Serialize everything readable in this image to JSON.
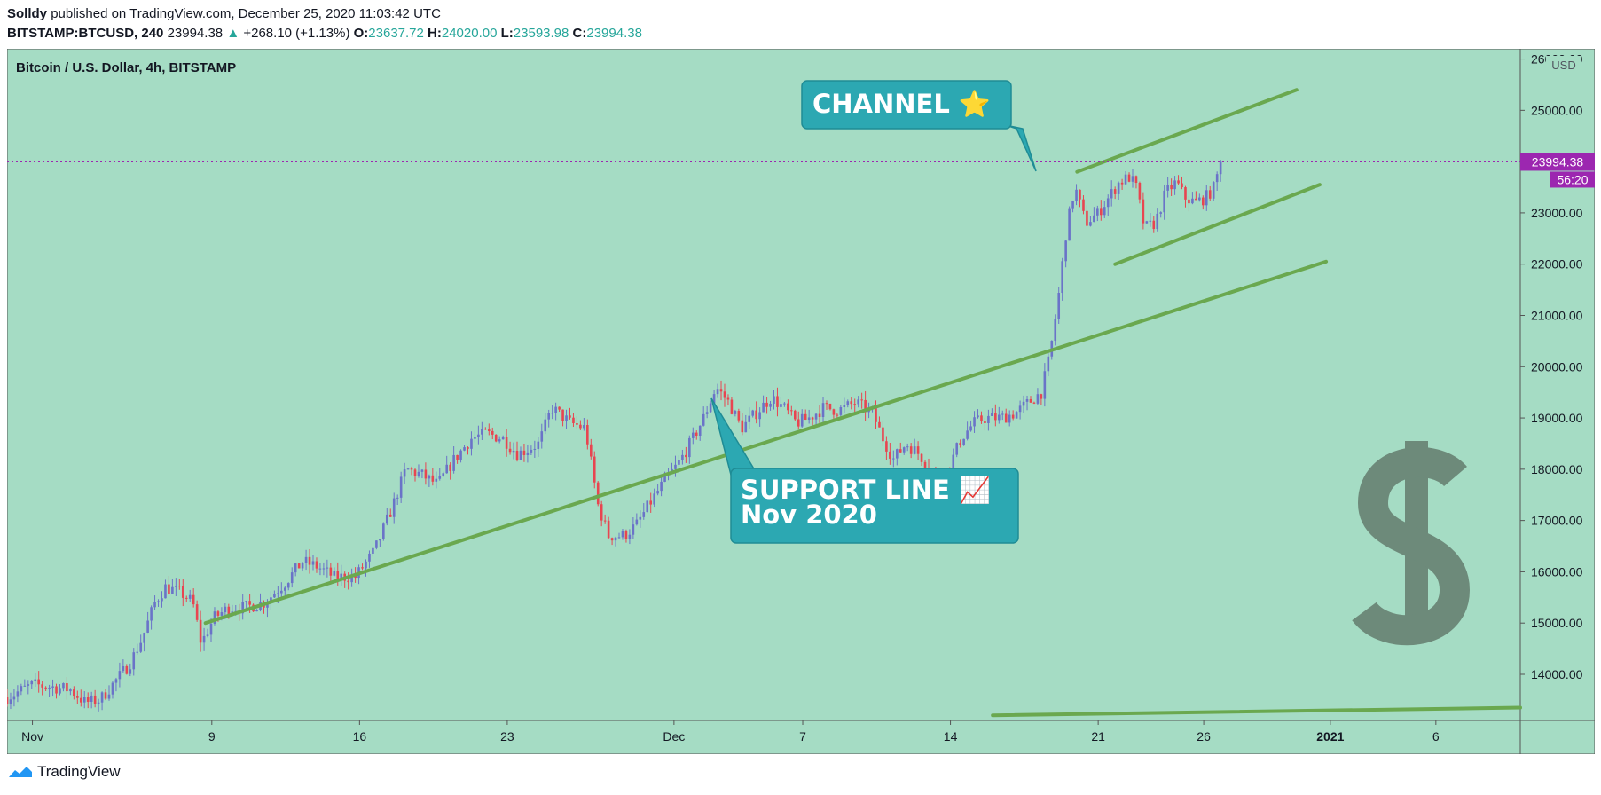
{
  "header": {
    "author": "Solldy",
    "published_text": "published on TradingView.com, December 25, 2020 11:03:42 UTC"
  },
  "ohlc": {
    "symbol": "BITSTAMP:BTCUSD, 240",
    "last": "23994.38",
    "change_arrow": "▲",
    "change": "+268.10 (+1.13%)",
    "o_label": "O:",
    "o": "23637.72",
    "h_label": "H:",
    "h": "24020.00",
    "l_label": "L:",
    "l": "23593.98",
    "c_label": "C:",
    "c": "23994.38"
  },
  "chart_title": "Bitcoin / U.S. Dollar, 4h, BITSTAMP",
  "currency_label": "USD",
  "price_tag": "23994.38",
  "countdown_tag": "56:20",
  "footer": {
    "brand": "TradingView"
  },
  "colors": {
    "background": "#a5dcc4",
    "candle_up": "#6a73c8",
    "candle_down": "#e84550",
    "trendline": "#6aa84f",
    "callout_fill": "#2ca8b2",
    "price_tag": "#9c27b0",
    "dollar_sign": "#6d8a7a"
  },
  "annotations": [
    {
      "text": "CHANNEL ⭐"
    },
    {
      "text_line1": "SUPPORT LINE 📈",
      "text_line2": "Nov 2020"
    }
  ],
  "chart_data": {
    "type": "candlestick",
    "title": "Bitcoin / U.S. Dollar, 4h, BITSTAMP",
    "ylabel": "USD",
    "ylim": [
      13100,
      26200
    ],
    "y_ticks": [
      "14000.00",
      "15000.00",
      "16000.00",
      "17000.00",
      "18000.00",
      "19000.00",
      "20000.00",
      "21000.00",
      "22000.00",
      "23000.00",
      "24000.00",
      "25000.00",
      "26000.00"
    ],
    "x_ticks": [
      "Nov",
      "9",
      "16",
      "23",
      "Dec",
      "7",
      "14",
      "21",
      "26",
      "2021",
      "6"
    ],
    "x_tick_days": [
      0,
      8.5,
      15.5,
      22.5,
      30.4,
      36.5,
      43.5,
      50.5,
      55.5,
      61.5,
      66.5
    ],
    "xlim_days": [
      -1.2,
      70.5
    ],
    "close_path": [
      [
        -1.2,
        13550
      ],
      [
        0,
        13800
      ],
      [
        1,
        13750
      ],
      [
        1.8,
        13700
      ],
      [
        2.5,
        13450
      ],
      [
        3.2,
        13500
      ],
      [
        4,
        13900
      ],
      [
        4.6,
        14200
      ],
      [
        5.2,
        14700
      ],
      [
        5.8,
        15400
      ],
      [
        6.3,
        15700
      ],
      [
        7,
        15600
      ],
      [
        7.6,
        15400
      ],
      [
        8,
        14600
      ],
      [
        8.6,
        15100
      ],
      [
        9.3,
        15300
      ],
      [
        10,
        15300
      ],
      [
        11,
        15400
      ],
      [
        12,
        15800
      ],
      [
        12.8,
        16200
      ],
      [
        13.5,
        16100
      ],
      [
        14.3,
        15900
      ],
      [
        15.3,
        15900
      ],
      [
        16.2,
        16400
      ],
      [
        17,
        17200
      ],
      [
        17.7,
        18000
      ],
      [
        18.4,
        17900
      ],
      [
        19.2,
        17700
      ],
      [
        20,
        18200
      ],
      [
        20.8,
        18600
      ],
      [
        21.5,
        18700
      ],
      [
        22.3,
        18600
      ],
      [
        23,
        18300
      ],
      [
        24,
        18500
      ],
      [
        24.6,
        19200
      ],
      [
        25.5,
        18900
      ],
      [
        26.2,
        18800
      ],
      [
        26.8,
        17300
      ],
      [
        27.3,
        16700
      ],
      [
        28,
        16700
      ],
      [
        28.6,
        16900
      ],
      [
        29.2,
        17300
      ],
      [
        30,
        17800
      ],
      [
        30.6,
        18100
      ],
      [
        31.3,
        18600
      ],
      [
        31.8,
        19000
      ],
      [
        32.4,
        19600
      ],
      [
        33,
        19300
      ],
      [
        33.6,
        18800
      ],
      [
        34.3,
        19100
      ],
      [
        35,
        19400
      ],
      [
        35.6,
        19200
      ],
      [
        36.2,
        18900
      ],
      [
        36.8,
        19000
      ],
      [
        37.5,
        19200
      ],
      [
        38.2,
        19150
      ],
      [
        39,
        19300
      ],
      [
        39.8,
        19100
      ],
      [
        40.3,
        18600
      ],
      [
        40.8,
        18200
      ],
      [
        41.4,
        18500
      ],
      [
        42,
        18300
      ],
      [
        42.6,
        18000
      ],
      [
        43,
        17800
      ],
      [
        43.5,
        18100
      ],
      [
        44,
        18600
      ],
      [
        44.6,
        18900
      ],
      [
        45.2,
        19000
      ],
      [
        45.9,
        19000
      ],
      [
        46.6,
        19100
      ],
      [
        47.2,
        19300
      ],
      [
        47.8,
        19500
      ],
      [
        48.2,
        20200
      ],
      [
        48.6,
        21300
      ],
      [
        49,
        22700
      ],
      [
        49.4,
        23500
      ],
      [
        49.9,
        22800
      ],
      [
        50.5,
        23000
      ],
      [
        51,
        23300
      ],
      [
        51.5,
        23600
      ],
      [
        52,
        23700
      ],
      [
        52.3,
        23500
      ],
      [
        52.7,
        22700
      ],
      [
        53.2,
        22800
      ],
      [
        53.7,
        23400
      ],
      [
        54.2,
        23600
      ],
      [
        54.6,
        23300
      ],
      [
        55.1,
        23200
      ],
      [
        55.6,
        23300
      ],
      [
        56,
        23500
      ],
      [
        56.3,
        23994
      ]
    ],
    "trendlines": [
      {
        "name": "support",
        "from": [
          8.2,
          15000
        ],
        "to": [
          61.3,
          22050
        ]
      },
      {
        "name": "channel_top",
        "from": [
          49.5,
          23800
        ],
        "to": [
          59.9,
          25400
        ]
      },
      {
        "name": "channel_bottom",
        "from": [
          51.3,
          22000
        ],
        "to": [
          61,
          23550
        ]
      },
      {
        "name": "long_term",
        "from": [
          45.5,
          13200
        ],
        "to": [
          70.5,
          13350
        ]
      }
    ],
    "last_price": 23994.38
  }
}
